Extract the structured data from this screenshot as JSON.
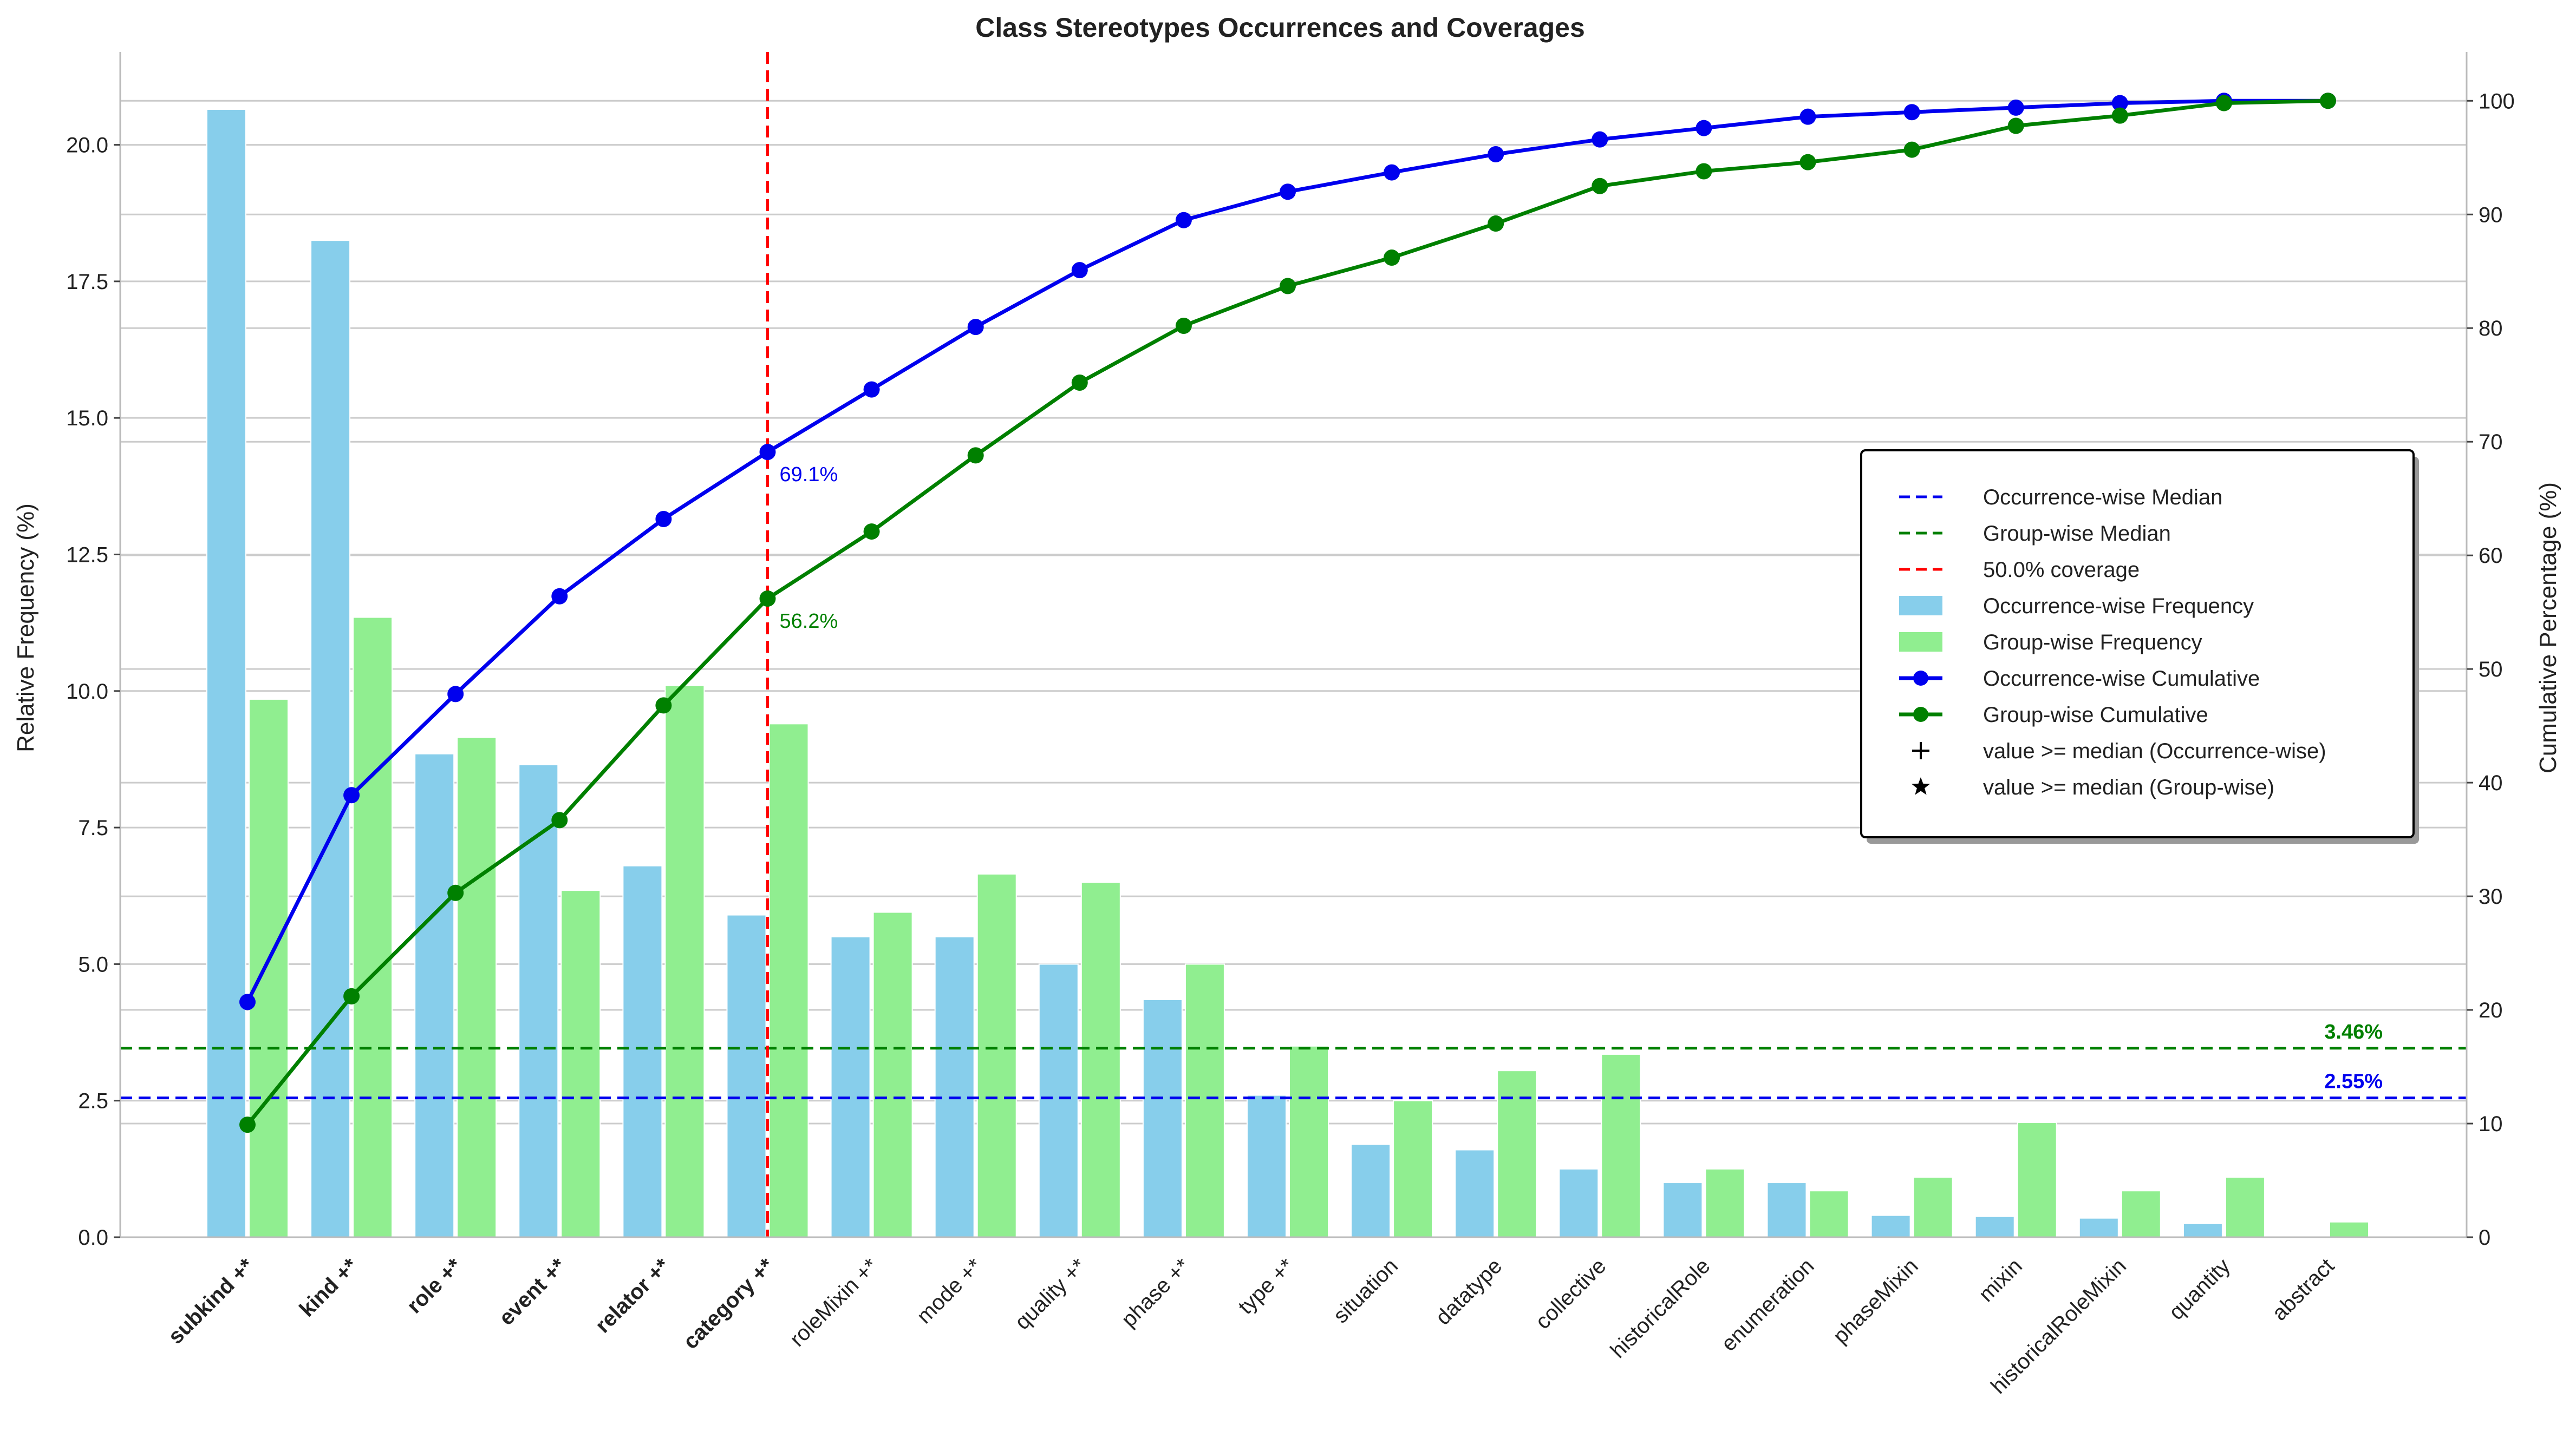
{
  "chart_data": {
    "type": "bar",
    "title": "Class Stereotypes Occurrences and Coverages",
    "ylabel": "Relative Frequency (%)",
    "y2label": "Cumulative Percentage (%)",
    "ylim": [
      0,
      21.7
    ],
    "y2lim": [
      0,
      104.3
    ],
    "yticks": [
      "0.0",
      "2.5",
      "5.0",
      "7.5",
      "10.0",
      "12.5",
      "15.0",
      "17.5",
      "20.0"
    ],
    "y2ticks": [
      "0",
      "10",
      "20",
      "30",
      "40",
      "50",
      "60",
      "70",
      "80",
      "90",
      "100"
    ],
    "grid": true,
    "legend_position": "center-right",
    "categories": [
      "subkind +*",
      "kind +*",
      "role +*",
      "event +*",
      "relator +*",
      "category +*",
      "roleMixin +*",
      "mode +*",
      "quality +*",
      "phase +*",
      "type +*",
      "situation",
      "datatype",
      "collective",
      "historicalRole",
      "enumeration",
      "phaseMixin",
      "mixin",
      "historicalRoleMixin",
      "quantity",
      "abstract"
    ],
    "bold_categories": [
      "subkind +*",
      "kind +*",
      "role +*",
      "event +*",
      "relator +*",
      "category +*"
    ],
    "series": [
      {
        "name": "Occurrence-wise Frequency",
        "kind": "bar",
        "color": "#87CEEB",
        "values": [
          20.65,
          18.25,
          8.85,
          8.65,
          6.8,
          5.9,
          5.5,
          5.5,
          5.0,
          4.35,
          2.6,
          1.7,
          1.6,
          1.25,
          1.0,
          1.0,
          0.4,
          0.38,
          0.35,
          0.25,
          0.0
        ]
      },
      {
        "name": "Group-wise Frequency",
        "kind": "bar",
        "color": "#90EE90",
        "values": [
          9.85,
          11.35,
          9.15,
          6.35,
          10.1,
          9.4,
          5.95,
          6.65,
          6.5,
          5.0,
          3.5,
          2.5,
          3.05,
          3.35,
          1.25,
          0.85,
          1.1,
          2.1,
          0.85,
          1.1,
          0.28
        ]
      },
      {
        "name": "Occurrence-wise Cumulative",
        "kind": "line",
        "axis": "right",
        "color": "#0000EE",
        "values": [
          20.7,
          38.9,
          47.8,
          56.4,
          63.2,
          69.1,
          74.6,
          80.1,
          85.1,
          89.5,
          92.0,
          93.7,
          95.3,
          96.6,
          97.6,
          98.6,
          99.0,
          99.4,
          99.8,
          100.0,
          100.0
        ]
      },
      {
        "name": "Group-wise Cumulative",
        "kind": "line",
        "axis": "right",
        "color": "#008000",
        "values": [
          9.9,
          21.2,
          30.3,
          36.7,
          46.8,
          56.2,
          62.1,
          68.8,
          75.2,
          80.2,
          83.7,
          86.2,
          89.2,
          92.5,
          93.8,
          94.6,
          95.7,
          97.8,
          98.7,
          99.8,
          100.0
        ]
      }
    ],
    "reference_lines": [
      {
        "name": "Occurrence-wise Median",
        "orientation": "horizontal",
        "value": 2.55,
        "label": "2.55%",
        "color": "#0000EE"
      },
      {
        "name": "Group-wise Median",
        "orientation": "horizontal",
        "value": 3.46,
        "label": "3.46%",
        "color": "#008000"
      },
      {
        "name": "50.0% coverage",
        "orientation": "vertical",
        "category_index": 5,
        "color": "#FF0000"
      }
    ],
    "annotations": [
      {
        "text": "69.1%",
        "series": "Occurrence-wise Cumulative",
        "index": 5,
        "color": "#0000EE"
      },
      {
        "text": "56.2%",
        "series": "Group-wise Cumulative",
        "index": 5,
        "color": "#008000"
      }
    ],
    "legend": [
      {
        "label": "Occurrence-wise Median",
        "marker": "dashed",
        "color": "#0000EE"
      },
      {
        "label": "Group-wise Median",
        "marker": "dashed",
        "color": "#008000"
      },
      {
        "label": "50.0% coverage",
        "marker": "dashed",
        "color": "#FF0000"
      },
      {
        "label": "Occurrence-wise Frequency",
        "marker": "patch",
        "color": "#87CEEB"
      },
      {
        "label": "Group-wise Frequency",
        "marker": "patch",
        "color": "#90EE90"
      },
      {
        "label": "Occurrence-wise Cumulative",
        "marker": "line-dot",
        "color": "#0000EE"
      },
      {
        "label": "Group-wise Cumulative",
        "marker": "line-dot",
        "color": "#008000"
      },
      {
        "label": "value >= median (Occurrence-wise)",
        "marker": "plus",
        "color": "#000000"
      },
      {
        "label": "value >= median (Group-wise)",
        "marker": "star",
        "color": "#000000"
      }
    ]
  }
}
